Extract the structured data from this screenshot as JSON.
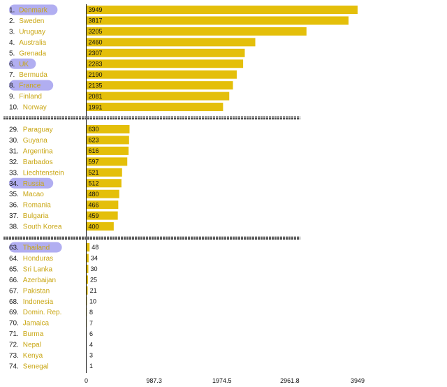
{
  "chart_data": {
    "type": "bar",
    "orientation": "horizontal",
    "colors": {
      "bar": "#e4bf0a",
      "highlight": "#a9a5ef",
      "label": "#c9a612",
      "separator": "#111111"
    },
    "xlim": [
      0,
      3949
    ],
    "xticks": [
      "0",
      "987.3",
      "1974.5",
      "2961.8",
      "3949"
    ],
    "groups": [
      {
        "rows": [
          {
            "rank": "1.",
            "name": "Denmark",
            "value": 3949,
            "highlight": true
          },
          {
            "rank": "2.",
            "name": "Sweden",
            "value": 3817,
            "highlight": false
          },
          {
            "rank": "3.",
            "name": "Uruguay",
            "value": 3205,
            "highlight": false
          },
          {
            "rank": "4.",
            "name": "Australia",
            "value": 2460,
            "highlight": false
          },
          {
            "rank": "5.",
            "name": "Grenada",
            "value": 2307,
            "highlight": false
          },
          {
            "rank": "6.",
            "name": "UK",
            "value": 2283,
            "highlight": true
          },
          {
            "rank": "7.",
            "name": "Bermuda",
            "value": 2190,
            "highlight": false
          },
          {
            "rank": "8.",
            "name": "France",
            "value": 2135,
            "highlight": true
          },
          {
            "rank": "9.",
            "name": "Finland",
            "value": 2081,
            "highlight": false
          },
          {
            "rank": "10.",
            "name": "Norway",
            "value": 1991,
            "highlight": false
          }
        ]
      },
      {
        "rows": [
          {
            "rank": "29.",
            "name": "Paraguay",
            "value": 630,
            "highlight": false
          },
          {
            "rank": "30.",
            "name": "Guyana",
            "value": 623,
            "highlight": false
          },
          {
            "rank": "31.",
            "name": "Argentina",
            "value": 616,
            "highlight": false
          },
          {
            "rank": "32.",
            "name": "Barbados",
            "value": 597,
            "highlight": false
          },
          {
            "rank": "33.",
            "name": "Liechtenstein",
            "value": 521,
            "highlight": false
          },
          {
            "rank": "34.",
            "name": "Russia",
            "value": 512,
            "highlight": true
          },
          {
            "rank": "35.",
            "name": "Macao",
            "value": 480,
            "highlight": false
          },
          {
            "rank": "36.",
            "name": "Romania",
            "value": 466,
            "highlight": false
          },
          {
            "rank": "37.",
            "name": "Bulgaria",
            "value": 459,
            "highlight": false
          },
          {
            "rank": "38.",
            "name": "South Korea",
            "value": 400,
            "highlight": false
          }
        ]
      },
      {
        "rows": [
          {
            "rank": "63.",
            "name": "Thailand",
            "value": 48,
            "highlight": true
          },
          {
            "rank": "64.",
            "name": "Honduras",
            "value": 34,
            "highlight": false
          },
          {
            "rank": "65.",
            "name": "Sri Lanka",
            "value": 30,
            "highlight": false
          },
          {
            "rank": "66.",
            "name": "Azerbaijan",
            "value": 25,
            "highlight": false
          },
          {
            "rank": "67.",
            "name": "Pakistan",
            "value": 21,
            "highlight": false
          },
          {
            "rank": "68.",
            "name": "Indonesia",
            "value": 10,
            "highlight": false
          },
          {
            "rank": "69.",
            "name": "Domin. Rep.",
            "value": 8,
            "highlight": false
          },
          {
            "rank": "70.",
            "name": "Jamaica",
            "value": 7,
            "highlight": false
          },
          {
            "rank": "71.",
            "name": "Burma",
            "value": 6,
            "highlight": false
          },
          {
            "rank": "72.",
            "name": "Nepal",
            "value": 4,
            "highlight": false
          },
          {
            "rank": "73.",
            "name": "Kenya",
            "value": 3,
            "highlight": false
          },
          {
            "rank": "74.",
            "name": "Senegal",
            "value": 1,
            "highlight": false
          }
        ]
      }
    ]
  }
}
